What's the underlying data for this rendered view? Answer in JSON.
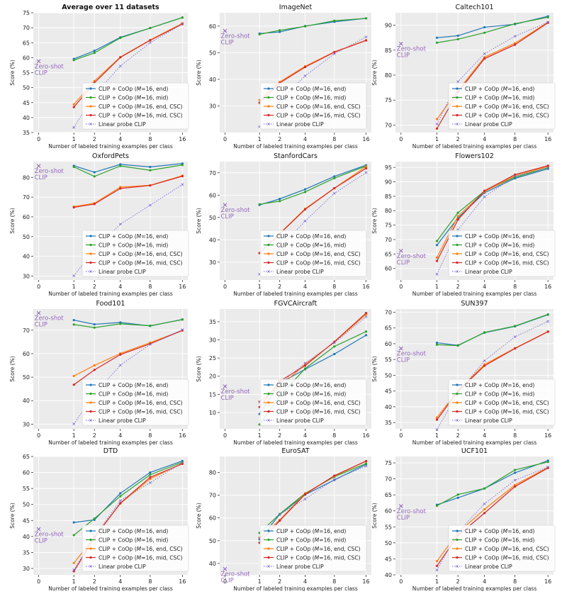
{
  "x_ticks": [
    0,
    1,
    2,
    4,
    8,
    16
  ],
  "shots": [
    1,
    2,
    4,
    8,
    16
  ],
  "xlabel": "Number of labeled training examples per class",
  "ylabel": "Score (%)",
  "zero_shot_label": [
    "Zero-shot",
    "CLIP"
  ],
  "colors": {
    "background": "#ebebeb",
    "grid": "#ffffff",
    "end": "#1f77b4",
    "mid": "#2ca02c",
    "end_csc": "#ff7f0e",
    "mid_csc": "#d62728",
    "linear": "#7b68d4",
    "zeroshot": "#9467bd"
  },
  "legend": [
    {
      "key": "end",
      "prefix": "CLIP + CoOp (",
      "suffix": "=16, end)"
    },
    {
      "key": "mid",
      "prefix": "CLIP + CoOp (",
      "suffix": "=16, mid)"
    },
    {
      "key": "end_csc",
      "prefix": "CLIP + CoOp (",
      "suffix": "=16, end, CSC)"
    },
    {
      "key": "mid_csc",
      "prefix": "CLIP + CoOp (",
      "suffix": "=16, mid, CSC)"
    },
    {
      "key": "linear",
      "prefix": "Linear probe CLIP",
      "suffix": ""
    }
  ],
  "chart_data": [
    {
      "type": "line",
      "title": "Average over 11 datasets",
      "bold": true,
      "ylim": [
        35,
        75
      ],
      "yticks": [
        35,
        40,
        45,
        50,
        55,
        60,
        65,
        70,
        75
      ],
      "zero_shot": 58.8,
      "series": [
        {
          "key": "end",
          "values": [
            59.6,
            62.3,
            66.8,
            69.9,
            73.4
          ]
        },
        {
          "key": "mid",
          "values": [
            59.2,
            61.6,
            66.6,
            69.9,
            73.4
          ]
        },
        {
          "key": "end_csc",
          "values": [
            44.4,
            52.2,
            60.2,
            65.9,
            71.5
          ]
        },
        {
          "key": "mid_csc",
          "values": [
            43.5,
            51.6,
            60.1,
            65.8,
            71.2
          ]
        },
        {
          "key": "linear",
          "values": [
            36.7,
            47.6,
            57.2,
            65.0,
            71.3
          ]
        }
      ]
    },
    {
      "type": "line",
      "title": "ImageNet",
      "ylim": [
        20,
        65
      ],
      "yticks": [
        30,
        40,
        50,
        60
      ],
      "zero_shot": 58.2,
      "series": [
        {
          "key": "end",
          "values": [
            57.2,
            57.8,
            60.0,
            61.6,
            62.9
          ]
        },
        {
          "key": "mid",
          "values": [
            56.9,
            58.4,
            59.9,
            62.0,
            62.9
          ]
        },
        {
          "key": "end_csc",
          "values": [
            32.2,
            39.0,
            44.9,
            50.3,
            54.7
          ]
        },
        {
          "key": "mid_csc",
          "values": [
            31.2,
            38.6,
            44.6,
            50.2,
            54.6
          ]
        },
        {
          "key": "linear",
          "values": [
            22.2,
            31.9,
            41.3,
            49.6,
            55.9
          ]
        }
      ]
    },
    {
      "type": "line",
      "title": "Caltech101",
      "ylim": [
        68.5,
        92.5
      ],
      "yticks": [
        70,
        75,
        80,
        85,
        90
      ],
      "zero_shot": 86.3,
      "series": [
        {
          "key": "end",
          "values": [
            87.5,
            87.9,
            89.6,
            90.2,
            91.8
          ]
        },
        {
          "key": "mid",
          "values": [
            86.5,
            87.2,
            88.5,
            90.3,
            91.6
          ]
        },
        {
          "key": "end_csc",
          "values": [
            71.2,
            76.9,
            83.6,
            86.4,
            90.6
          ]
        },
        {
          "key": "mid_csc",
          "values": [
            69.3,
            76.6,
            83.3,
            86.1,
            90.5
          ]
        },
        {
          "key": "linear",
          "values": [
            70.2,
            78.7,
            84.3,
            87.8,
            90.6
          ]
        }
      ]
    },
    {
      "type": "line",
      "title": "OxfordPets",
      "ylim": [
        28,
        88
      ],
      "yticks": [
        30,
        40,
        50,
        60,
        70,
        80
      ],
      "zero_shot": 85.8,
      "series": [
        {
          "key": "end",
          "values": [
            85.9,
            82.6,
            86.6,
            85.3,
            87.0
          ]
        },
        {
          "key": "mid",
          "values": [
            85.3,
            80.5,
            85.8,
            83.6,
            86.3
          ]
        },
        {
          "key": "end_csc",
          "values": [
            65.2,
            66.9,
            75.1,
            76.0,
            80.9
          ]
        },
        {
          "key": "mid_csc",
          "values": [
            64.8,
            66.5,
            74.4,
            75.9,
            80.6
          ]
        },
        {
          "key": "linear",
          "values": [
            30.1,
            43.5,
            56.3,
            65.9,
            76.4
          ]
        }
      ]
    },
    {
      "type": "line",
      "title": "StanfordCars",
      "ylim": [
        22,
        75
      ],
      "yticks": [
        30,
        40,
        50,
        60,
        70
      ],
      "zero_shot": 55.6,
      "series": [
        {
          "key": "end",
          "values": [
            55.6,
            58.3,
            62.6,
            68.4,
            73.4
          ]
        },
        {
          "key": "mid",
          "values": [
            55.9,
            57.3,
            61.4,
            67.6,
            73.0
          ]
        },
        {
          "key": "end_csc",
          "values": [
            34.1,
            42.8,
            53.9,
            63.1,
            72.8
          ]
        },
        {
          "key": "mid_csc",
          "values": [
            34.0,
            42.7,
            53.6,
            63.1,
            72.0
          ]
        },
        {
          "key": "linear",
          "values": [
            24.6,
            36.4,
            48.4,
            60.8,
            70.1
          ]
        }
      ]
    },
    {
      "type": "line",
      "title": "Flowers102",
      "ylim": [
        56,
        97
      ],
      "yticks": [
        60,
        65,
        70,
        75,
        80,
        85,
        90,
        95
      ],
      "zero_shot": 66.1,
      "series": [
        {
          "key": "end",
          "values": [
            68.1,
            77.5,
            86.2,
            91.2,
            94.5
          ]
        },
        {
          "key": "mid",
          "values": [
            69.5,
            79.3,
            86.8,
            91.6,
            94.9
          ]
        },
        {
          "key": "end_csc",
          "values": [
            63.8,
            78.1,
            86.6,
            92.1,
            95.3
          ]
        },
        {
          "key": "mid_csc",
          "values": [
            62.6,
            76.9,
            86.9,
            92.5,
            95.6
          ]
        },
        {
          "key": "linear",
          "values": [
            58.0,
            73.4,
            84.8,
            92.0,
            94.9
          ]
        }
      ]
    },
    {
      "type": "line",
      "title": "Food101",
      "ylim": [
        28,
        79
      ],
      "yticks": [
        30,
        40,
        50,
        60,
        70
      ],
      "zero_shot": 77.3,
      "series": [
        {
          "key": "end",
          "values": [
            74.3,
            72.5,
            73.3,
            71.8,
            74.6
          ]
        },
        {
          "key": "mid",
          "values": [
            72.4,
            71.1,
            72.7,
            71.9,
            74.5
          ]
        },
        {
          "key": "end_csc",
          "values": [
            50.5,
            55.0,
            60.1,
            64.7,
            69.9
          ]
        },
        {
          "key": "mid_csc",
          "values": [
            46.8,
            53.1,
            59.6,
            64.2,
            69.9
          ]
        },
        {
          "key": "linear",
          "values": [
            30.1,
            42.8,
            55.1,
            64.0,
            70.2
          ]
        }
      ]
    },
    {
      "type": "line",
      "title": "FGVCAircraft",
      "ylim": [
        5.5,
        38.5
      ],
      "yticks": [
        10,
        15,
        20,
        25,
        30,
        35
      ],
      "zero_shot": 17.2,
      "series": [
        {
          "key": "end",
          "values": [
            9.6,
            18.1,
            21.9,
            26.1,
            31.3
          ]
        },
        {
          "key": "mid",
          "values": [
            6.7,
            14.5,
            22.1,
            28.2,
            32.3
          ]
        },
        {
          "key": "end_csc",
          "values": [
            13.0,
            17.1,
            23.3,
            29.4,
            37.0
          ]
        },
        {
          "key": "mid_csc",
          "values": [
            11.5,
            18.6,
            22.9,
            29.5,
            37.4
          ]
        },
        {
          "key": "linear",
          "values": [
            12.9,
            17.9,
            23.6,
            29.2,
            36.4
          ]
        }
      ]
    },
    {
      "type": "line",
      "title": "SUN397",
      "ylim": [
        33,
        71
      ],
      "yticks": [
        35,
        40,
        45,
        50,
        55,
        60,
        65,
        70
      ],
      "zero_shot": 58.5,
      "series": [
        {
          "key": "end",
          "values": [
            60.3,
            59.5,
            63.5,
            65.5,
            69.2
          ]
        },
        {
          "key": "mid",
          "values": [
            59.7,
            59.4,
            63.6,
            65.6,
            69.3
          ]
        },
        {
          "key": "end_csc",
          "values": [
            36.6,
            45.2,
            53.4,
            58.6,
            63.9
          ]
        },
        {
          "key": "mid_csc",
          "values": [
            35.9,
            44.9,
            53.0,
            58.5,
            63.8
          ]
        },
        {
          "key": "linear",
          "values": [
            32.8,
            44.4,
            54.6,
            62.2,
            67.1
          ]
        }
      ]
    },
    {
      "type": "line",
      "title": "DTD",
      "ylim": [
        28,
        65
      ],
      "yticks": [
        30,
        35,
        40,
        45,
        50,
        55,
        60,
        65
      ],
      "zero_shot": 42.3,
      "series": [
        {
          "key": "end",
          "values": [
            44.4,
            45.2,
            53.5,
            60.0,
            63.6
          ]
        },
        {
          "key": "mid",
          "values": [
            40.4,
            45.6,
            52.6,
            59.3,
            63.2
          ]
        },
        {
          "key": "end_csc",
          "values": [
            31.7,
            39.8,
            50.3,
            58.0,
            62.9
          ]
        },
        {
          "key": "mid_csc",
          "values": [
            29.1,
            39.6,
            50.4,
            58.5,
            62.7
          ]
        },
        {
          "key": "linear",
          "values": [
            29.6,
            40.0,
            51.2,
            56.8,
            63.1
          ]
        }
      ]
    },
    {
      "type": "line",
      "title": "EuroSAT",
      "ylim": [
        35,
        87
      ],
      "yticks": [
        40,
        50,
        60,
        70,
        80
      ],
      "zero_shot": 37.6,
      "series": [
        {
          "key": "end",
          "values": [
            50.6,
            61.5,
            70.2,
            76.7,
            83.5
          ]
        },
        {
          "key": "mid",
          "values": [
            53.4,
            61.7,
            70.8,
            78.1,
            83.9
          ]
        },
        {
          "key": "end_csc",
          "values": [
            51.3,
            59.1,
            70.7,
            78.4,
            84.9
          ]
        },
        {
          "key": "mid_csc",
          "values": [
            49.1,
            58.8,
            70.4,
            78.6,
            85.0
          ]
        },
        {
          "key": "linear",
          "values": [
            51.0,
            61.6,
            68.3,
            76.9,
            82.8
          ]
        }
      ]
    },
    {
      "type": "line",
      "title": "UCF101",
      "ylim": [
        40,
        77
      ],
      "yticks": [
        40,
        45,
        50,
        55,
        60,
        65,
        70,
        75
      ],
      "zero_shot": 61.5,
      "series": [
        {
          "key": "end",
          "values": [
            61.9,
            64.1,
            67.0,
            71.9,
            75.7
          ]
        },
        {
          "key": "mid",
          "values": [
            61.6,
            65.1,
            67.0,
            72.8,
            75.3
          ]
        },
        {
          "key": "end_csc",
          "values": [
            44.3,
            53.2,
            60.5,
            68.1,
            73.6
          ]
        },
        {
          "key": "mid_csc",
          "values": [
            42.8,
            52.3,
            59.3,
            67.6,
            73.4
          ]
        },
        {
          "key": "linear",
          "values": [
            41.5,
            53.4,
            62.2,
            69.6,
            73.7
          ]
        }
      ]
    }
  ]
}
